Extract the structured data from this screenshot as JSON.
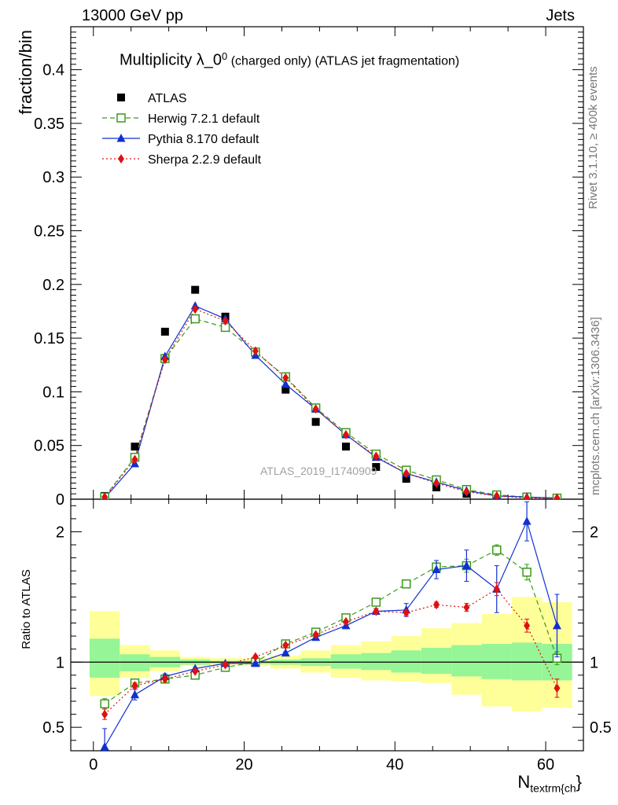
{
  "header": {
    "left": "13000 GeV pp",
    "right": "Jets"
  },
  "side_labels": {
    "rivet": "Rivet 3.1.10, ≥ 400k events",
    "mcplots": "mcplots.cern.ch [arXiv:1306.3436]"
  },
  "chart_data": {
    "type": "scatter",
    "title_main": "Multiplicity λ_0",
    "title_sup": "0",
    "title_small": " (charged only) (ATLAS jet fragmentation)",
    "watermark": "ATLAS_2019_I1740909",
    "x_axis": {
      "label_main": "N",
      "label_sub": "textrm{ch",
      "label_tail": "}",
      "range": [
        -3,
        65
      ],
      "ticks": [
        0,
        20,
        40,
        60
      ],
      "tick_labels": [
        "0",
        "20",
        "40",
        "60"
      ]
    },
    "main_panel": {
      "ylabel": "fraction/bin",
      "yrange": [
        0,
        0.44
      ],
      "ticks": [
        0,
        0.05,
        0.1,
        0.15,
        0.2,
        0.25,
        0.3,
        0.35,
        0.4
      ],
      "tick_labels": [
        "0",
        "0.05",
        "0.1",
        "0.15",
        "0.2",
        "0.25",
        "0.3",
        "0.35",
        "0.4"
      ]
    },
    "ratio_panel": {
      "ylabel": "Ratio to ATLAS",
      "yrange": [
        0.32,
        2.25
      ],
      "ticks": [
        0.5,
        1,
        2
      ],
      "tick_labels": [
        "0.5",
        "1",
        "2"
      ]
    },
    "x": [
      1.5,
      5.5,
      9.5,
      13.5,
      17.5,
      21.5,
      25.5,
      29.5,
      33.5,
      37.5,
      41.5,
      45.5,
      49.5,
      53.5,
      57.5,
      61.5
    ],
    "bin_edges": [
      -0.5,
      3.5,
      7.5,
      11.5,
      15.5,
      19.5,
      23.5,
      27.5,
      31.5,
      35.5,
      39.5,
      43.5,
      47.5,
      51.5,
      55.5,
      59.5,
      63.5
    ],
    "legend": [
      {
        "name": "ATLAS",
        "color": "#000000",
        "marker": "square"
      },
      {
        "name": "Herwig 7.2.1 default",
        "color": "#3a9a1a",
        "marker": "open-square",
        "dash": "6,4"
      },
      {
        "name": "Pythia 8.170 default",
        "color": "#1030d0",
        "marker": "triangle",
        "dash": ""
      },
      {
        "name": "Sherpa 2.2.9 default",
        "color": "#e01010",
        "marker": "diamond",
        "dash": "2,3"
      }
    ],
    "series": [
      {
        "name": "ATLAS",
        "values": [
          0.003,
          0.049,
          0.156,
          0.195,
          0.17,
          0.137,
          0.102,
          0.072,
          0.049,
          0.03,
          0.019,
          0.011,
          0.005,
          0.002,
          0.001,
          0.001
        ]
      },
      {
        "name": "Herwig 7.2.1 default",
        "values": [
          0.002,
          0.039,
          0.131,
          0.168,
          0.16,
          0.137,
          0.114,
          0.085,
          0.062,
          0.042,
          0.027,
          0.018,
          0.009,
          0.004,
          0.002,
          0.001
        ],
        "ratio": [
          0.68,
          0.84,
          0.87,
          0.9,
          0.96,
          1.0,
          1.14,
          1.23,
          1.34,
          1.46,
          1.6,
          1.73,
          1.74,
          1.86,
          1.69,
          1.03
        ],
        "ratio_err": [
          0.04,
          0.02,
          0.02,
          0.01,
          0.01,
          0.01,
          0.01,
          0.01,
          0.01,
          0.02,
          0.02,
          0.03,
          0.05,
          0.04,
          0.06,
          0.05
        ]
      },
      {
        "name": "Pythia 8.170 default",
        "values": [
          0.001,
          0.033,
          0.133,
          0.18,
          0.168,
          0.134,
          0.107,
          0.084,
          0.06,
          0.039,
          0.024,
          0.016,
          0.008,
          0.003,
          0.002,
          0.001
        ],
        "ratio": [
          0.35,
          0.75,
          0.89,
          0.95,
          0.99,
          0.99,
          1.07,
          1.19,
          1.28,
          1.39,
          1.4,
          1.71,
          1.74,
          1.56,
          2.08,
          1.28
        ],
        "ratio_err": [
          0.14,
          0.04,
          0.02,
          0.01,
          0.01,
          0.01,
          0.01,
          0.01,
          0.02,
          0.02,
          0.05,
          0.07,
          0.12,
          0.18,
          0.15,
          0.24
        ]
      },
      {
        "name": "Sherpa 2.2.9 default",
        "values": [
          0.002,
          0.037,
          0.13,
          0.177,
          0.166,
          0.138,
          0.113,
          0.084,
          0.06,
          0.04,
          0.024,
          0.015,
          0.007,
          0.003,
          0.001,
          0.001
        ],
        "ratio": [
          0.6,
          0.82,
          0.87,
          0.93,
          0.98,
          1.04,
          1.13,
          1.21,
          1.31,
          1.39,
          1.38,
          1.44,
          1.42,
          1.56,
          1.28,
          0.8
        ],
        "ratio_err": [
          0.04,
          0.02,
          0.02,
          0.01,
          0.01,
          0.01,
          0.01,
          0.01,
          0.01,
          0.02,
          0.02,
          0.02,
          0.03,
          0.05,
          0.05,
          0.07
        ]
      }
    ],
    "uncertainty_bands": {
      "green_color": "#96f596",
      "yellow_color": "#ffff9a",
      "green_low": [
        0.88,
        0.93,
        0.96,
        0.98,
        0.99,
        0.985,
        0.98,
        0.97,
        0.95,
        0.94,
        0.92,
        0.91,
        0.89,
        0.87,
        0.86,
        0.86
      ],
      "green_high": [
        1.18,
        1.06,
        1.04,
        1.02,
        1.01,
        1.01,
        1.02,
        1.03,
        1.06,
        1.07,
        1.09,
        1.11,
        1.13,
        1.14,
        1.15,
        1.14
      ],
      "yellow_low": [
        0.74,
        0.88,
        0.93,
        0.97,
        0.98,
        0.97,
        0.95,
        0.92,
        0.88,
        0.86,
        0.85,
        0.84,
        0.75,
        0.66,
        0.62,
        0.65
      ],
      "yellow_high": [
        1.39,
        1.13,
        1.09,
        1.04,
        1.03,
        1.03,
        1.05,
        1.09,
        1.13,
        1.16,
        1.2,
        1.26,
        1.3,
        1.37,
        1.5,
        1.46
      ]
    }
  }
}
